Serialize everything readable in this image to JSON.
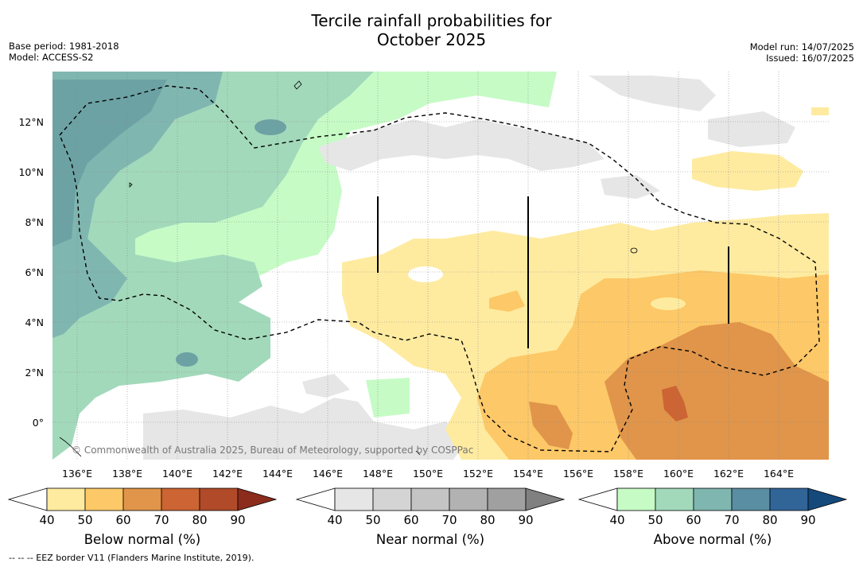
{
  "title_line1": "Tercile rainfall probabilities for",
  "title_line2": "October 2025",
  "base_period": "Base period: 1981-2018",
  "model": "Model: ACCESS-S2",
  "model_run": "Model run: 14/07/2025",
  "issued": "Issued: 16/07/2025",
  "watermark": "© Commonwealth of Australia 2025, Bureau of Meteorology, supported by COSPPac",
  "footnote": "--  --  -- EEZ border V11 (Flanders Marine Institute, 2019).",
  "lon_ticks": [
    "136°E",
    "138°E",
    "140°E",
    "142°E",
    "144°E",
    "146°E",
    "148°E",
    "150°E",
    "152°E",
    "154°E",
    "156°E",
    "158°E",
    "160°E",
    "162°E",
    "164°E"
  ],
  "lat_ticks": [
    "12°N",
    "10°N",
    "8°N",
    "6°N",
    "4°N",
    "2°N",
    "0°"
  ],
  "colorbars": [
    {
      "label": "Below normal (%)",
      "ticks": [
        "40",
        "50",
        "60",
        "70",
        "80",
        "90"
      ],
      "colors": [
        "#ffffff",
        "#feeba0",
        "#fdc867",
        "#e0954a",
        "#cc6433",
        "#b04a28",
        "#8c2c1c"
      ]
    },
    {
      "label": "Near normal (%)",
      "ticks": [
        "40",
        "50",
        "60",
        "70",
        "80",
        "90"
      ],
      "colors": [
        "#ffffff",
        "#e6e6e6",
        "#d4d4d4",
        "#c4c4c4",
        "#b2b2b2",
        "#a0a0a0",
        "#808080"
      ]
    },
    {
      "label": "Above normal (%)",
      "ticks": [
        "40",
        "50",
        "60",
        "70",
        "80",
        "90"
      ],
      "colors": [
        "#ffffff",
        "#c6fbc6",
        "#a2d9bb",
        "#80b6b0",
        "#5a8ea2",
        "#316598",
        "#15497c"
      ]
    }
  ],
  "colors": {
    "below50": "#feeba0",
    "below60": "#fdc867",
    "below70": "#e0954a",
    "below80": "#cc6433",
    "near50": "#e6e6e6",
    "above40": "#c6fbc6",
    "above50": "#a2d9bb",
    "above60": "#80b6b0",
    "above70": "#6ca2a4"
  }
}
